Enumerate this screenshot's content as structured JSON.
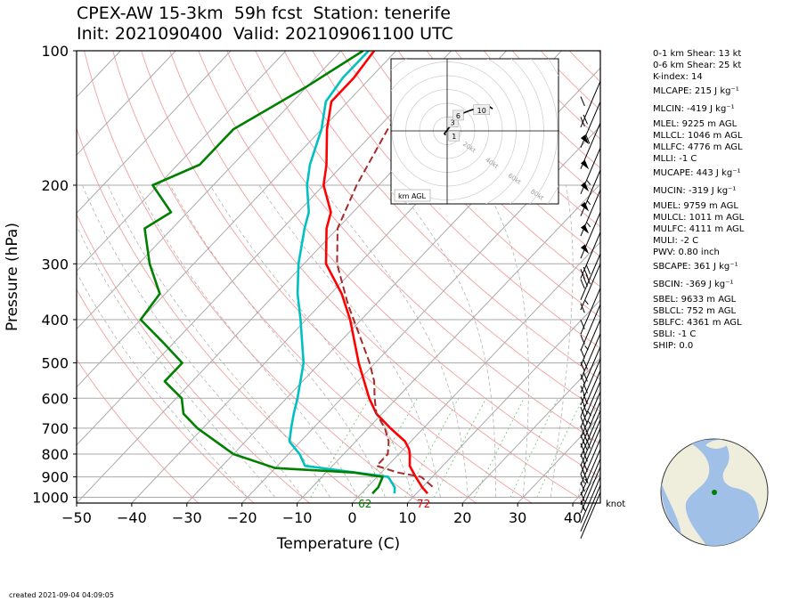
{
  "title_line1": "CPEX-AW 15-3km  59h fcst  Station: tenerife",
  "title_line2": "Init: 2021090400  Valid: 2021090611​00 UTC",
  "created": "created 2021-09-04 04:09:05",
  "stats": [
    {
      "text": "0-1 km Shear: 13 kt"
    },
    {
      "text": "0-6 km Shear: 25 kt"
    },
    {
      "text": "K-index: 14"
    },
    {
      "text": "MLCAPE: 215 J kg⁻¹",
      "tall": true
    },
    {
      "text": "MLCIN: -419 J kg⁻¹",
      "tall": true
    },
    {
      "text": "MLEL: 9225 m AGL"
    },
    {
      "text": "MLLCL: 1046 m AGL"
    },
    {
      "text": "MLLFC: 4776 m AGL"
    },
    {
      "text": "MLLI: -1 C"
    },
    {
      "text": "MUCAPE: 443 J kg⁻¹",
      "tall": true
    },
    {
      "text": "MUCIN: -319 J kg⁻¹",
      "tall": true
    },
    {
      "text": "MUEL: 9759 m AGL"
    },
    {
      "text": "MULCL: 1011 m AGL"
    },
    {
      "text": "MULFC: 4111 m AGL"
    },
    {
      "text": "MULI: -2 C"
    },
    {
      "text": "PWV: 0.80 inch"
    },
    {
      "text": "SBCAPE: 361 J kg⁻¹",
      "tall": true
    },
    {
      "text": "SBCIN: -369 J kg⁻¹",
      "tall": true
    },
    {
      "text": "SBEL: 9633 m AGL"
    },
    {
      "text": "SBLCL: 752 m AGL"
    },
    {
      "text": "SBLFC: 4361 m AGL"
    },
    {
      "text": "SBLI: -1 C"
    },
    {
      "text": "SHIP: 0.0"
    }
  ],
  "chart_data": {
    "type": "line",
    "xlabel": "Temperature (C)",
    "ylabel": "Pressure (hPa)",
    "xlim": [
      -50,
      45
    ],
    "ylim": [
      1030,
      100
    ],
    "y_scale": "log",
    "xticks": [
      -50,
      -40,
      -30,
      -20,
      -10,
      0,
      10,
      20,
      30,
      40
    ],
    "yticks": [
      100,
      200,
      300,
      400,
      500,
      600,
      700,
      800,
      900,
      1000
    ],
    "isotherm_step": 10,
    "surface_labels": {
      "dewpoint": "62",
      "temperature": "72"
    },
    "wind_units": "knot",
    "series": [
      {
        "key": "temperature",
        "color": "#ff0000",
        "points": [
          [
            -74,
            100
          ],
          [
            -73,
            115
          ],
          [
            -73,
            130
          ],
          [
            -69,
            150
          ],
          [
            -63,
            180
          ],
          [
            -60,
            200
          ],
          [
            -54,
            230
          ],
          [
            -52,
            250
          ],
          [
            -46,
            300
          ],
          [
            -38,
            350
          ],
          [
            -32,
            400
          ],
          [
            -23,
            500
          ],
          [
            -15,
            600
          ],
          [
            -11,
            650
          ],
          [
            -6,
            700
          ],
          [
            -1,
            750
          ],
          [
            1,
            780
          ],
          [
            2,
            800
          ],
          [
            4,
            850
          ],
          [
            7,
            900
          ],
          [
            10,
            950
          ],
          [
            12,
            980
          ]
        ]
      },
      {
        "key": "dewpoint",
        "color": "#00c0c0",
        "points": [
          [
            -75,
            100
          ],
          [
            -75,
            115
          ],
          [
            -74,
            130
          ],
          [
            -70,
            150
          ],
          [
            -66,
            180
          ],
          [
            -63,
            200
          ],
          [
            -58,
            230
          ],
          [
            -56,
            250
          ],
          [
            -51,
            300
          ],
          [
            -46,
            350
          ],
          [
            -41,
            400
          ],
          [
            -33,
            500
          ],
          [
            -28,
            600
          ],
          [
            -26,
            650
          ],
          [
            -24,
            700
          ],
          [
            -22,
            750
          ],
          [
            -18,
            800
          ],
          [
            -15,
            850
          ],
          [
            2,
            900
          ],
          [
            5,
            950
          ],
          [
            6,
            980
          ]
        ]
      },
      {
        "key": "moisture",
        "color": "#008000",
        "points": [
          [
            -76,
            100
          ],
          [
            -80,
            120
          ],
          [
            -86,
            150
          ],
          [
            -86,
            180
          ],
          [
            -91,
            200
          ],
          [
            -83,
            230
          ],
          [
            -85,
            250
          ],
          [
            -78,
            300
          ],
          [
            -71,
            350
          ],
          [
            -70,
            400
          ],
          [
            -62,
            450
          ],
          [
            -55,
            500
          ],
          [
            -55,
            550
          ],
          [
            -49,
            600
          ],
          [
            -46,
            650
          ],
          [
            -41,
            700
          ],
          [
            -30,
            800
          ],
          [
            -20,
            860
          ],
          [
            -5,
            880
          ],
          [
            1,
            900
          ],
          [
            2,
            950
          ],
          [
            2,
            980
          ]
        ]
      },
      {
        "key": "parcel",
        "color": "#a52a2a",
        "dashed": true,
        "points": [
          [
            -60,
            110
          ],
          [
            -58,
            150
          ],
          [
            -54,
            200
          ],
          [
            -50,
            250
          ],
          [
            -44,
            300
          ],
          [
            -35,
            370
          ],
          [
            -28,
            430
          ],
          [
            -21,
            500
          ],
          [
            -17,
            550
          ],
          [
            -14,
            600
          ],
          [
            -11,
            650
          ],
          [
            -7,
            700
          ],
          [
            -4,
            750
          ],
          [
            -2,
            800
          ],
          [
            -2,
            850
          ],
          [
            3,
            880
          ],
          [
            8,
            900
          ],
          [
            12,
            950
          ]
        ]
      }
    ],
    "wind_barbs": [
      {
        "p": 117,
        "speed": 10
      },
      {
        "p": 130,
        "speed": 20
      },
      {
        "p": 145,
        "speed": 60
      },
      {
        "p": 165,
        "speed": 50
      },
      {
        "p": 185,
        "speed": 55
      },
      {
        "p": 205,
        "speed": 55
      },
      {
        "p": 230,
        "speed": 55
      },
      {
        "p": 255,
        "speed": 50
      },
      {
        "p": 285,
        "speed": 30
      },
      {
        "p": 300,
        "speed": 30
      },
      {
        "p": 340,
        "speed": 15
      },
      {
        "p": 370,
        "speed": 10
      },
      {
        "p": 400,
        "speed": 10
      },
      {
        "p": 430,
        "speed": 15
      },
      {
        "p": 460,
        "speed": 20
      },
      {
        "p": 490,
        "speed": 20
      },
      {
        "p": 520,
        "speed": 20
      },
      {
        "p": 550,
        "speed": 20
      },
      {
        "p": 580,
        "speed": 20
      },
      {
        "p": 610,
        "speed": 25
      },
      {
        "p": 640,
        "speed": 25
      },
      {
        "p": 670,
        "speed": 30
      },
      {
        "p": 700,
        "speed": 30
      },
      {
        "p": 740,
        "speed": 20
      },
      {
        "p": 780,
        "speed": 20
      },
      {
        "p": 820,
        "speed": 20
      },
      {
        "p": 855,
        "speed": 15
      },
      {
        "p": 900,
        "speed": 10
      },
      {
        "p": 940,
        "speed": 10
      },
      {
        "p": 975,
        "speed": 5
      }
    ],
    "hodograph": {
      "ring_labels": [
        "20kt",
        "40kt",
        "60kt",
        "80kt"
      ],
      "unit_label": "km AGL",
      "points": [
        [
          -1,
          -3
        ],
        [
          -2,
          -2
        ],
        [
          2,
          3
        ],
        [
          5,
          8
        ],
        [
          9,
          10
        ],
        [
          12,
          13
        ],
        [
          17,
          15
        ],
        [
          24,
          17
        ],
        [
          30,
          18
        ],
        [
          33,
          16
        ]
      ],
      "height_labels": [
        {
          "text": "1",
          "u": 5,
          "v": -4
        },
        {
          "text": "3",
          "u": 4,
          "v": 6
        },
        {
          "text": "6",
          "u": 8,
          "v": 11
        },
        {
          "text": "10",
          "u": 25,
          "v": 15
        }
      ]
    },
    "location_map": {
      "lon": -16.5,
      "lat": 28.5
    }
  }
}
